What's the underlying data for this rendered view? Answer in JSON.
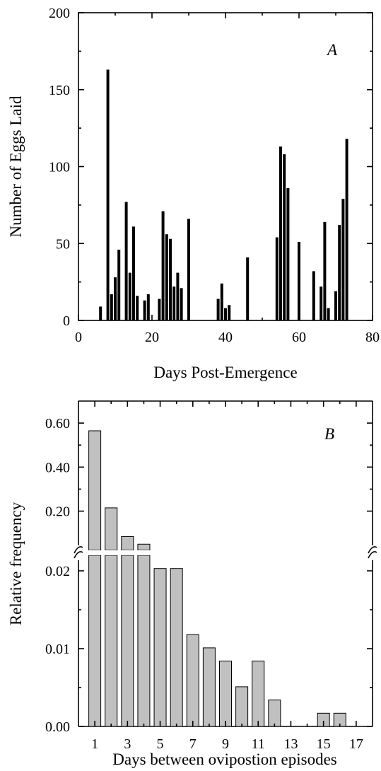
{
  "chart_data": [
    {
      "type": "bar",
      "panel_label": "A",
      "xlabel": "Days Post-Emergence",
      "ylabel": "Number of Eggs Laid",
      "xlim": [
        0,
        80
      ],
      "ylim": [
        0,
        200
      ],
      "xticks": [
        0,
        20,
        40,
        60,
        80
      ],
      "yticks": [
        0,
        50,
        100,
        150,
        200
      ],
      "bar_color": "#000000",
      "x": [
        6,
        8,
        9,
        10,
        11,
        13,
        14,
        15,
        16,
        18,
        19,
        22,
        23,
        24,
        25,
        26,
        27,
        28,
        30,
        38,
        39,
        40,
        41,
        46,
        54,
        55,
        56,
        57,
        60,
        64,
        66,
        67,
        68,
        70,
        71,
        72,
        73
      ],
      "values": [
        9,
        163,
        17,
        28,
        46,
        77,
        31,
        61,
        16,
        13,
        17,
        14,
        71,
        56,
        53,
        22,
        31,
        21,
        66,
        14,
        24,
        8,
        10,
        41,
        54,
        113,
        108,
        86,
        51,
        32,
        22,
        64,
        8,
        19,
        62,
        79,
        118
      ]
    },
    {
      "type": "bar",
      "panel_label": "B",
      "xlabel": "Days between ovipostion episodes",
      "ylabel": "Relative frequency",
      "axis_break": true,
      "xlim": [
        0,
        18
      ],
      "xticks": [
        1,
        3,
        5,
        7,
        9,
        11,
        13,
        15,
        17
      ],
      "ylim_lower": [
        0,
        0.022
      ],
      "yticks_lower": [
        "0.00",
        "0.01",
        "0.02"
      ],
      "ylim_upper": [
        0.022,
        0.7
      ],
      "yticks_upper": [
        "0.20",
        "0.40",
        "0.60"
      ],
      "bar_color": "#c0c0c0",
      "categories": [
        1,
        2,
        3,
        4,
        5,
        6,
        7,
        8,
        9,
        10,
        11,
        12,
        13,
        14,
        15,
        16,
        17
      ],
      "values": [
        0.565,
        0.215,
        0.085,
        0.05,
        0.0203,
        0.0203,
        0.0118,
        0.0101,
        0.0084,
        0.0051,
        0.0084,
        0.0034,
        0,
        0,
        0.0017,
        0.0017,
        0
      ]
    }
  ]
}
